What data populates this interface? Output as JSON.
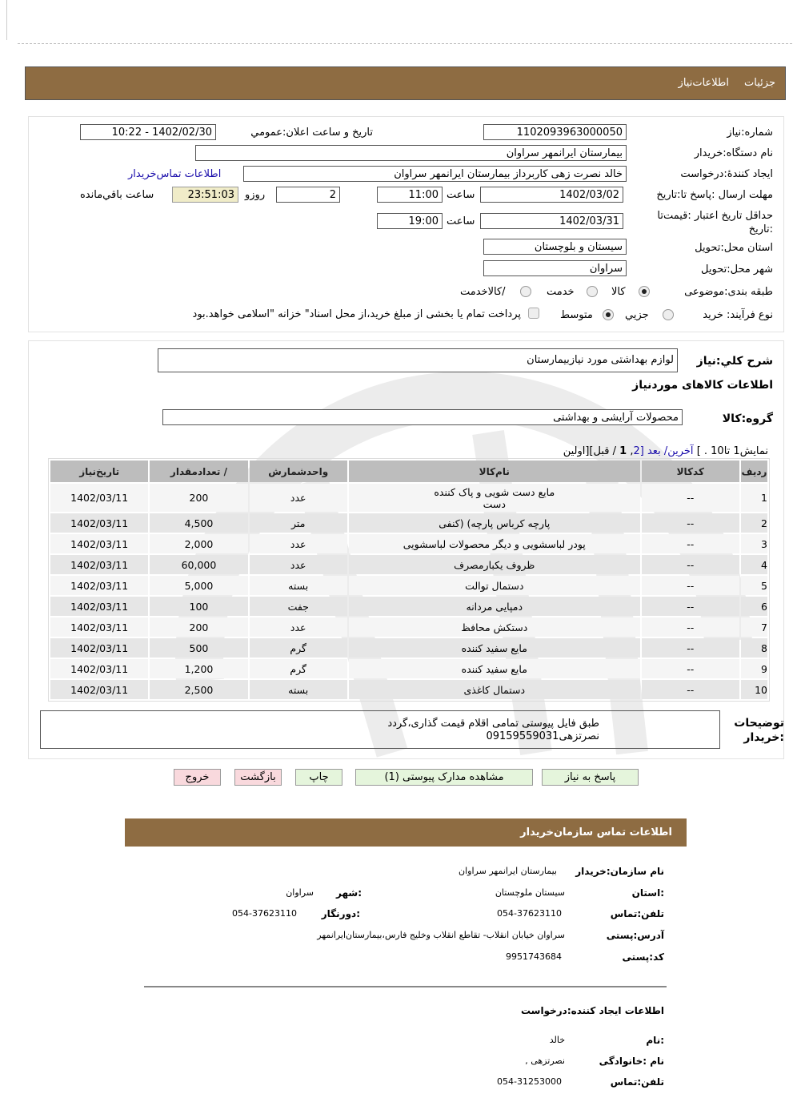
{
  "header": {
    "tabs": [
      "جزئیات",
      "اطلاعات‌نیاز"
    ]
  },
  "form": {
    "need_number_label": "شماره:نیاز",
    "need_number": "1102093963000050",
    "announce_label": "تاریخ و ساعت اعلان:عمومي",
    "announce_value": "1402/02/30 - 10:22",
    "buyer_label": "نام دستگاه:خریدار",
    "buyer": "بیمارستان ایرانمهر سراوان",
    "creator_label": "ایجاد کنندهٔ:درخواست",
    "creator": "خالد نصرت زهی کاربرداز بیمارستان ایرانمهر سراوان",
    "contact_link": "اطلاعات تماس‌خریدار",
    "deadline_label": "مهلت ارسال :پاسخ تا:تاریخ",
    "deadline_date": "1402/03/02",
    "time_label": "ساعت",
    "deadline_time": "11:00",
    "days": "2",
    "days_label": "روزو",
    "remaining": "23:51:03",
    "remaining_label": "ساعت باقي‌مانده",
    "validity_label": "حداقل تاریخ اعتبار :قیمت‌تا :تاریخ",
    "validity_date": "1402/03/31",
    "validity_time": "19:00",
    "province_label": "استان محل:تحویل",
    "province": "سیستان و بلوچستان",
    "city_label": "شهر محل:تحویل",
    "city": "سراوان",
    "category_label": "طبقه بندی:موضوعی",
    "category_options": [
      "کالا",
      "خدمت",
      "/کالاخدمت"
    ],
    "category_selected": "کالا",
    "process_label": "نوع فرآیند: خرید",
    "process_options": [
      "جزیي",
      "متوسط"
    ],
    "process_selected": "متوسط",
    "payment_note": "پرداخت تمام یا بخشی از مبلغ خرید،از محل اسناد\" خزانه \"اسلامی خواهد.بود"
  },
  "summary": {
    "label": "شرح كلي:نیاز",
    "value": "لوازم بهداشتی مورد نیازبیمارستان",
    "goods_title": "اطلاعات کالاهای موردنیاز",
    "group_label": "گروه:کالا",
    "group_value": "محصولات آرایشی و بهداشتی"
  },
  "pagination": {
    "prefix": "نمایش1 تا10 . ]",
    "last": "آخرین/",
    "next": "بعد",
    "page2": "[2",
    "sep": ",",
    "page1": "1",
    "rest": "/ قبل][اولین"
  },
  "table": {
    "headers": [
      "ردیف",
      "کدکالا",
      "نام‌کالا",
      "واحدشمارش",
      "/ تعدادمقدار",
      "تاریخ‌نیاز"
    ],
    "rows": [
      [
        "1",
        "--",
        "مایع دست شویی و پاک کننده دست",
        "عدد",
        "200",
        "1402/03/11"
      ],
      [
        "2",
        "--",
        "پارچه کرباس پارچه) (کنفی",
        "متر",
        "4,500",
        "1402/03/11"
      ],
      [
        "3",
        "--",
        "پودر لباسشویی و دیگر محصولات لباسشویی",
        "عدد",
        "2,000",
        "1402/03/11"
      ],
      [
        "4",
        "--",
        "ظروف یکبارمصرف",
        "عدد",
        "60,000",
        "1402/03/11"
      ],
      [
        "5",
        "--",
        "دستمال توالت",
        "بسته",
        "5,000",
        "1402/03/11"
      ],
      [
        "6",
        "--",
        "دمپایی مردانه",
        "جفت",
        "100",
        "1402/03/11"
      ],
      [
        "7",
        "--",
        "دستکش محافظ",
        "عدد",
        "200",
        "1402/03/11"
      ],
      [
        "8",
        "--",
        "مایع سفید کننده",
        "گرم",
        "500",
        "1402/03/11"
      ],
      [
        "9",
        "--",
        "مایع سفید کننده",
        "گرم",
        "1,200",
        "1402/03/11"
      ],
      [
        "10",
        "--",
        "دستمال کاغذی",
        "بسته",
        "2,500",
        "1402/03/11"
      ]
    ]
  },
  "notes": {
    "label": "توضیحات :خریدار",
    "line1": "طبق فایل پیوستی تمامی اقلام قیمت گذاری،گردد",
    "line2": "نصرتزهی09159559031"
  },
  "buttons": {
    "reply": "پاسخ به نیاز",
    "attachments": "مشاهده مدارک پیوستی (1)",
    "print": "چاپ",
    "back": "بازگشت",
    "exit": "خروج"
  },
  "contact": {
    "title": "اطلاعات  تماس سازمان‌خریدار",
    "org_label": "نام سازمان:خریدار",
    "org": "بیمارستان ایرانمهر سراوان",
    "province_label": ":استان",
    "province": "سیستان ملوچستان",
    "city_label": ":شهر",
    "city": "سراوان",
    "phone_label": "تلفن:تماس",
    "phone": "054-37623110",
    "fax_label": ":دورنگار",
    "fax": "054-37623110",
    "address_label": "آدرس:پستی",
    "address": "سراوان خیابان انقلاب- تقاطع انقلاب وخلیج فارس،بیمارستان‌ایرانمهر",
    "postal_label": "کد:پستی",
    "postal": "9951743684",
    "creator_title": "اطلاعات  ایجاد کننده:درخواست",
    "name_label": ":نام",
    "name": "خالد",
    "family_label": "نام :خانوادگی",
    "family": "نصرتزهی ,",
    "cphone_label": "تلفن:تماس",
    "cphone": "054-31253000"
  },
  "colors": {
    "header_bar": "#8e6c42",
    "link": "#1a0dab",
    "remaining_bg": "#f0ecc8",
    "button_green": "#e5f5dc",
    "button_red": "#f9d9dd",
    "table_header": "#bdbdbd"
  }
}
